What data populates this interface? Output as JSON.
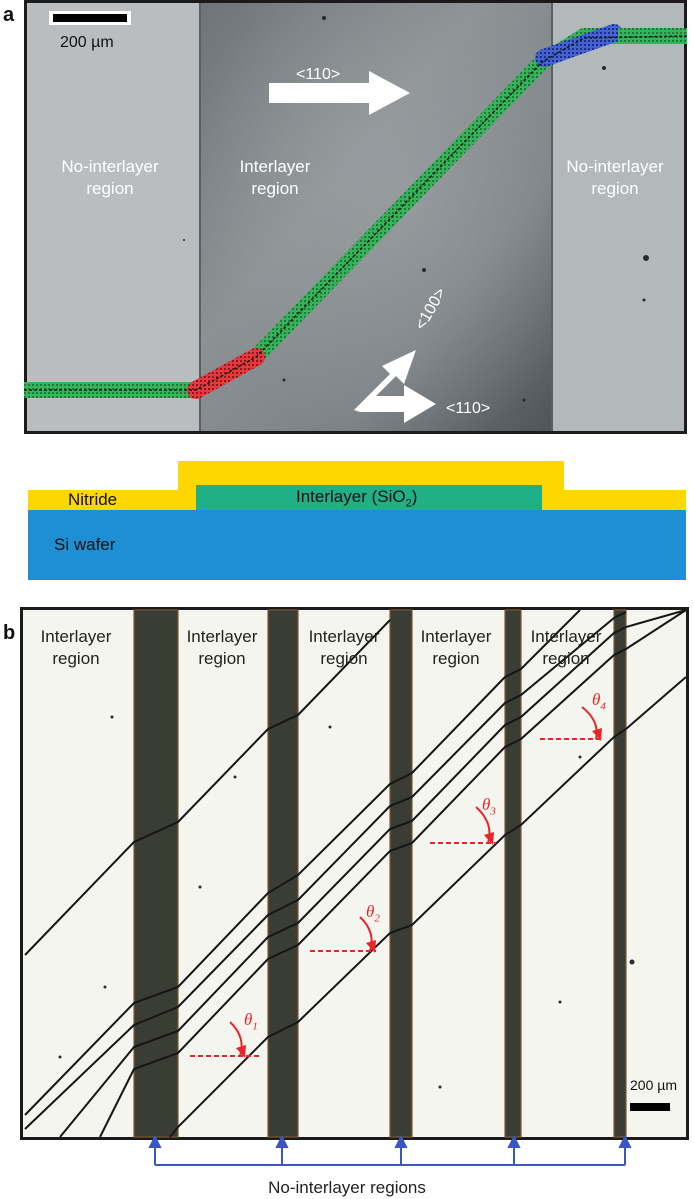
{
  "figure": {
    "panel_a": {
      "letter": "a",
      "scale_bar": "200 µm",
      "left_region": {
        "line1": "No-interlayer",
        "line2": "region"
      },
      "center_region": {
        "line1": "Interlayer",
        "line2": "region"
      },
      "right_region": {
        "line1": "No-interlayer",
        "line2": "region"
      },
      "arrow_top": "<110>",
      "arrow_diag": "<100>",
      "arrow_bottom": "<110>",
      "colors": {
        "green": "#2fbf5a",
        "red": "#e0343a",
        "blue": "#3a5ed8"
      }
    },
    "cross_section": {
      "nitride": "Nitride",
      "interlayer_prefix": "Interlayer (SiO",
      "interlayer_sub": "2",
      "interlayer_suffix": ")",
      "wafer": "Si wafer",
      "colors": {
        "nitride": "#ffd700",
        "interlayer": "#1fb088",
        "wafer": "#1e8fd3"
      }
    },
    "panel_b": {
      "letter": "b",
      "regions": [
        {
          "line1": "Interlayer",
          "line2": "region"
        },
        {
          "line1": "Interlayer",
          "line2": "region"
        },
        {
          "line1": "Interlayer",
          "line2": "region"
        },
        {
          "line1": "Interlayer",
          "line2": "region"
        },
        {
          "line1": "Interlayer",
          "line2": "region"
        }
      ],
      "angles": [
        {
          "sym": "θ",
          "sub": "1"
        },
        {
          "sym": "θ",
          "sub": "2"
        },
        {
          "sym": "θ",
          "sub": "3"
        },
        {
          "sym": "θ",
          "sub": "4"
        }
      ],
      "scale_bar": "200 µm",
      "bottom_label": "No-interlayer regions"
    }
  }
}
